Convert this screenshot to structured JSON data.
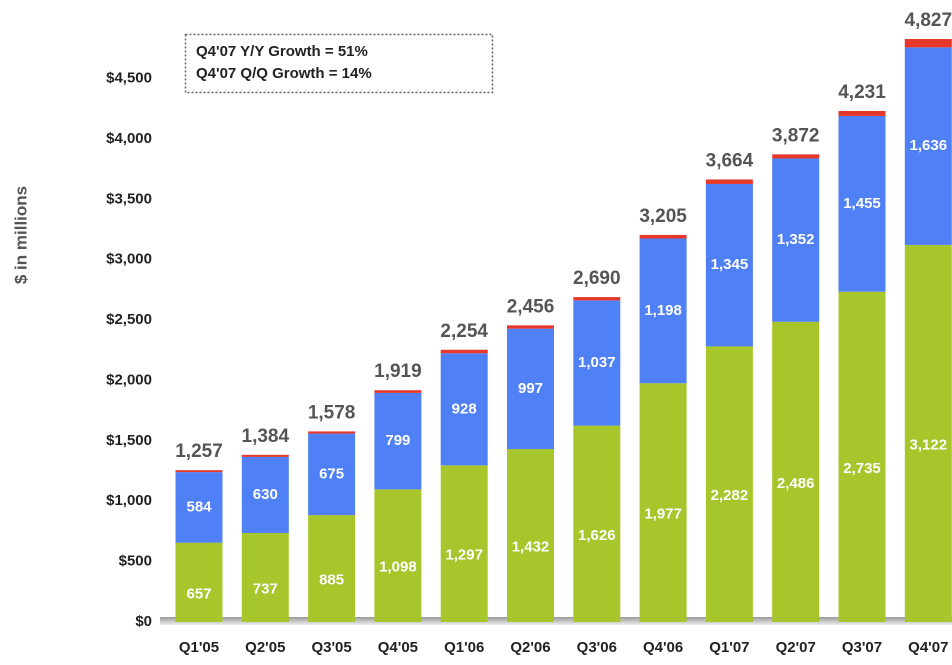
{
  "chart_data": {
    "type": "stacked_bar",
    "y_label": "$ in millions",
    "annotations": [
      "Q4'07 Y/Y Growth = 51%",
      "Q4'07 Q/Q Growth = 14%"
    ],
    "categories": [
      "Q1'05",
      "Q2'05",
      "Q3'05",
      "Q4'05",
      "Q1'06",
      "Q2'06",
      "Q3'06",
      "Q4'06",
      "Q1'07",
      "Q2'07",
      "Q3'07",
      "Q4'07"
    ],
    "series": [
      {
        "color": "#a6c62c",
        "values": [
          657,
          737,
          885,
          1098,
          1297,
          1432,
          1626,
          1977,
          2282,
          2486,
          2735,
          3122
        ],
        "value_labels": [
          "657",
          "737",
          "885",
          "1,098",
          "1,297",
          "1,432",
          "1,626",
          "1,977",
          "2,282",
          "2,486",
          "2,735",
          "3,122"
        ]
      },
      {
        "color": "#4f80f6",
        "values": [
          584,
          630,
          675,
          799,
          928,
          997,
          1037,
          1198,
          1345,
          1352,
          1455,
          1636
        ],
        "value_labels": [
          "584",
          "630",
          "675",
          "799",
          "928",
          "997",
          "1,037",
          "1,198",
          "1,345",
          "1,352",
          "1,455",
          "1,636"
        ]
      },
      {
        "color": "#e6372b",
        "values": [
          16,
          17,
          18,
          22,
          29,
          27,
          27,
          30,
          37,
          34,
          41,
          69
        ]
      }
    ],
    "totals": [
      1257,
      1384,
      1578,
      1919,
      2254,
      2456,
      2690,
      3205,
      3664,
      3872,
      4231,
      4827
    ],
    "total_labels": [
      "1,257",
      "1,384",
      "1,578",
      "1,919",
      "2,254",
      "2,456",
      "2,690",
      "3,205",
      "3,664",
      "3,872",
      "4,231",
      "4,827"
    ],
    "ylim": [
      0,
      5150
    ],
    "yticks": [
      {
        "value": 0,
        "label": "$0"
      },
      {
        "value": 500,
        "label": "$500"
      },
      {
        "value": 1000,
        "label": "$1,000"
      },
      {
        "value": 1500,
        "label": "$1,500"
      },
      {
        "value": 2000,
        "label": "$2,000"
      },
      {
        "value": 2500,
        "label": "$2,500"
      },
      {
        "value": 3000,
        "label": "$3,000"
      },
      {
        "value": 3500,
        "label": "$3,500"
      },
      {
        "value": 4000,
        "label": "$4,000"
      },
      {
        "value": 4500,
        "label": "$4,500"
      }
    ],
    "grid": false
  }
}
